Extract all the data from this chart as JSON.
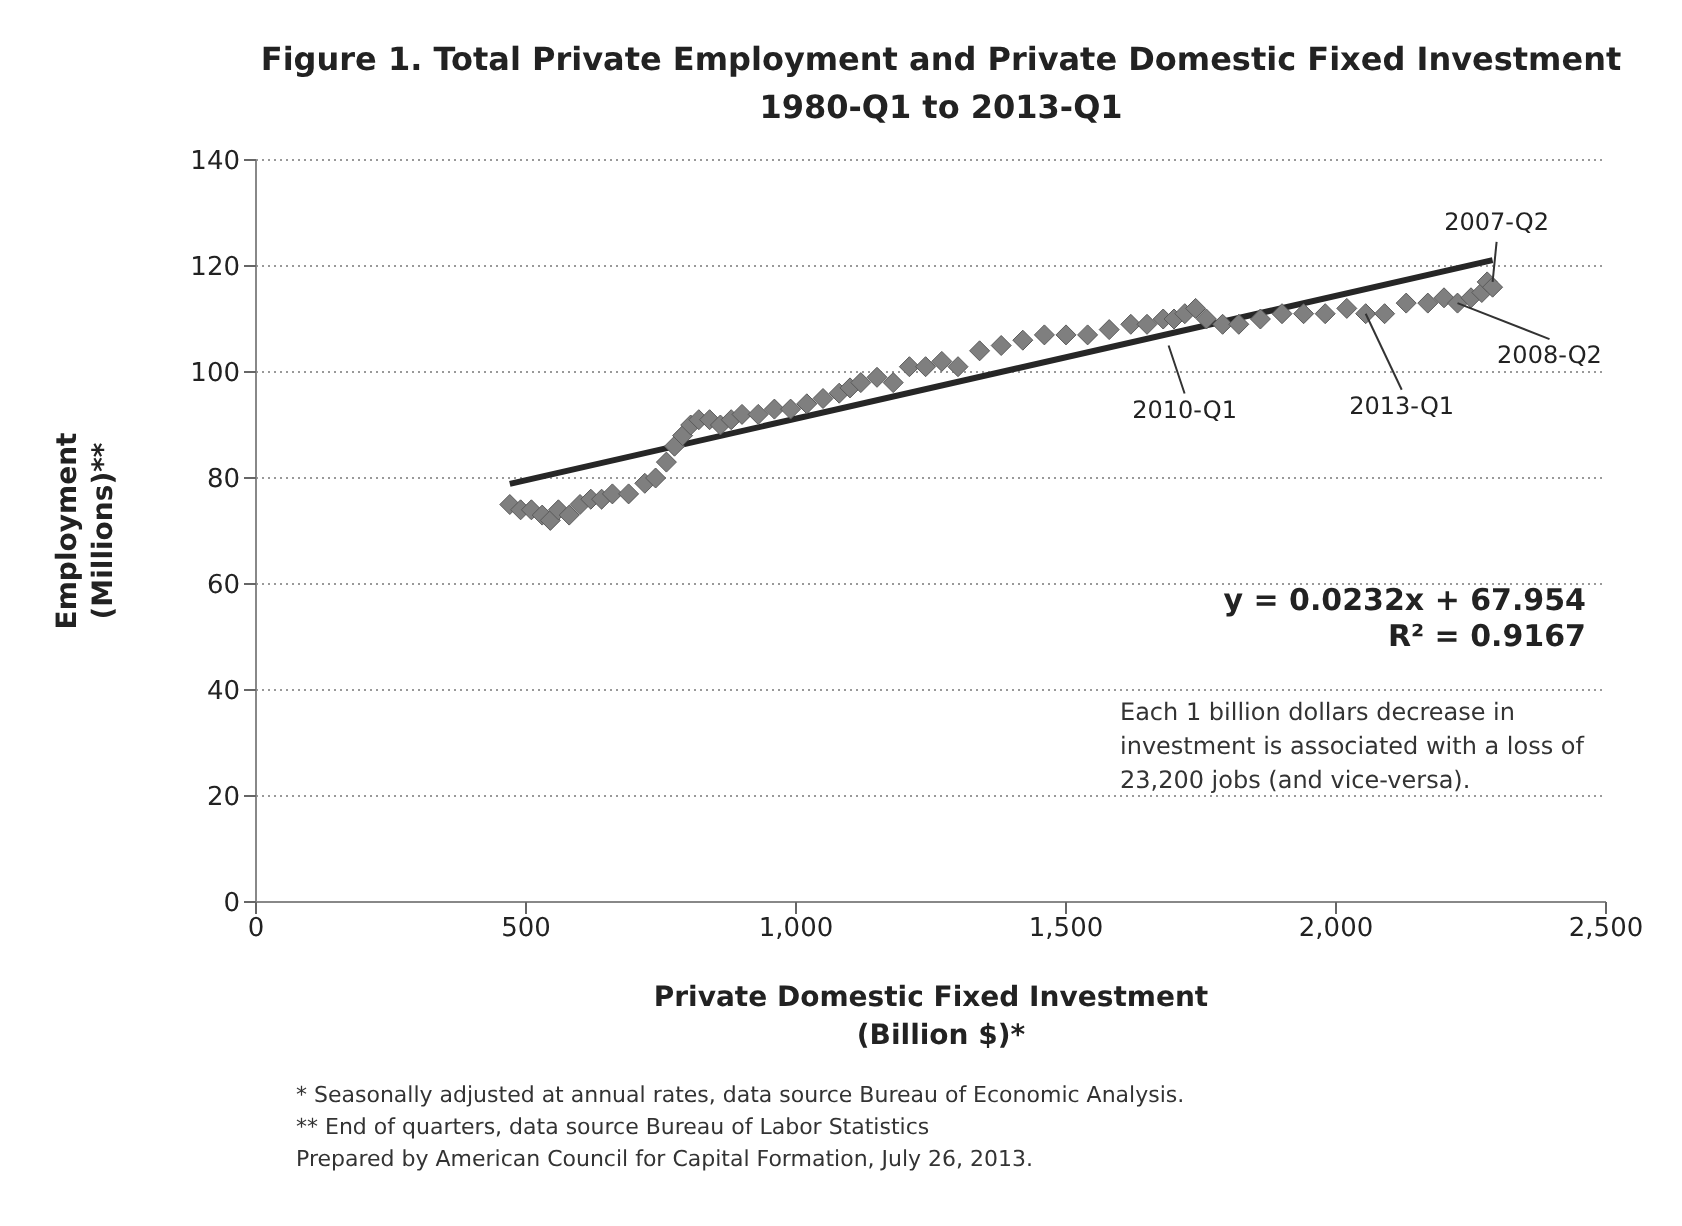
{
  "chart_data": {
    "type": "scatter",
    "title": "Figure 1. Total Private Employment and Private Domestic Fixed Investment\n1980-Q1 to 2013-Q1",
    "xlabel": "Private Domestic Fixed Investment\n(Billion $)*",
    "ylabel": "Employment\n(Millions)**",
    "xlim": [
      0,
      2500
    ],
    "xticks": [
      0,
      {
        "value": 500,
        "label": "500"
      },
      {
        "value": 1000,
        "label": "1,000"
      },
      {
        "value": 1500,
        "label": "1,500"
      },
      {
        "value": 2000,
        "label": "2,000"
      },
      {
        "value": 2500,
        "label": "2,500"
      }
    ],
    "ylim": [
      0,
      140
    ],
    "yticks": [
      0,
      20,
      40,
      60,
      80,
      100,
      120,
      140
    ],
    "grid": "y",
    "series": [
      {
        "marker": "diamond",
        "color": "#7f7f7f",
        "x": [
          470,
          490,
          510,
          530,
          545,
          560,
          580,
          600,
          620,
          640,
          660,
          690,
          720,
          740,
          760,
          775,
          790,
          805,
          820,
          840,
          860,
          880,
          900,
          930,
          960,
          990,
          1020,
          1050,
          1080,
          1100,
          1120,
          1150,
          1180,
          1210,
          1240,
          1270,
          1300,
          1340,
          1380,
          1420,
          1460,
          1500,
          1540,
          1580,
          1620,
          1650,
          1680,
          1700,
          1720,
          1740,
          1760,
          1790,
          1820,
          1860,
          1900,
          1940,
          1980,
          2020,
          2055,
          2090,
          2130,
          2170,
          2200,
          2225,
          2250,
          2270,
          2280,
          2290
        ],
        "values": [
          75,
          74,
          74,
          73,
          72,
          74,
          73,
          75,
          76,
          76,
          77,
          77,
          79,
          80,
          83,
          86,
          88,
          90,
          91,
          91,
          90,
          91,
          92,
          92,
          93,
          93,
          94,
          95,
          96,
          97,
          98,
          99,
          98,
          101,
          101,
          102,
          101,
          104,
          105,
          106,
          107,
          107,
          107,
          108,
          109,
          109,
          110,
          110,
          111,
          112,
          110,
          109,
          109,
          110,
          111,
          111,
          111,
          112,
          111,
          111,
          113,
          113,
          114,
          113,
          114,
          115,
          117,
          116
        ]
      },
      {
        "type": "line",
        "color": "#262626",
        "x": [
          470,
          2290
        ],
        "values": [
          78.9,
          121.1
        ]
      }
    ],
    "annotations": [
      {
        "text": "2007-Q2",
        "x": 2290,
        "y": 117
      },
      {
        "text": "2008-Q2",
        "x": 2225,
        "y": 113
      },
      {
        "text": "2013-Q1",
        "x": 2055,
        "y": 111
      },
      {
        "text": "2010-Q1",
        "x": 1690,
        "y": 105
      },
      "y = 0.0232x + 67.954",
      "R² = 0.9167",
      "Each 1 billion dollars decrease in investment is associated with a loss of 23,200 jobs (and vice-versa).",
      "* Seasonally adjusted at annual rates, data source Bureau of Economic Analysis.",
      "** End of quarters, data source Bureau of Labor Statistics",
      "Prepared by American Council for Capital Formation, July 26, 2013."
    ]
  }
}
